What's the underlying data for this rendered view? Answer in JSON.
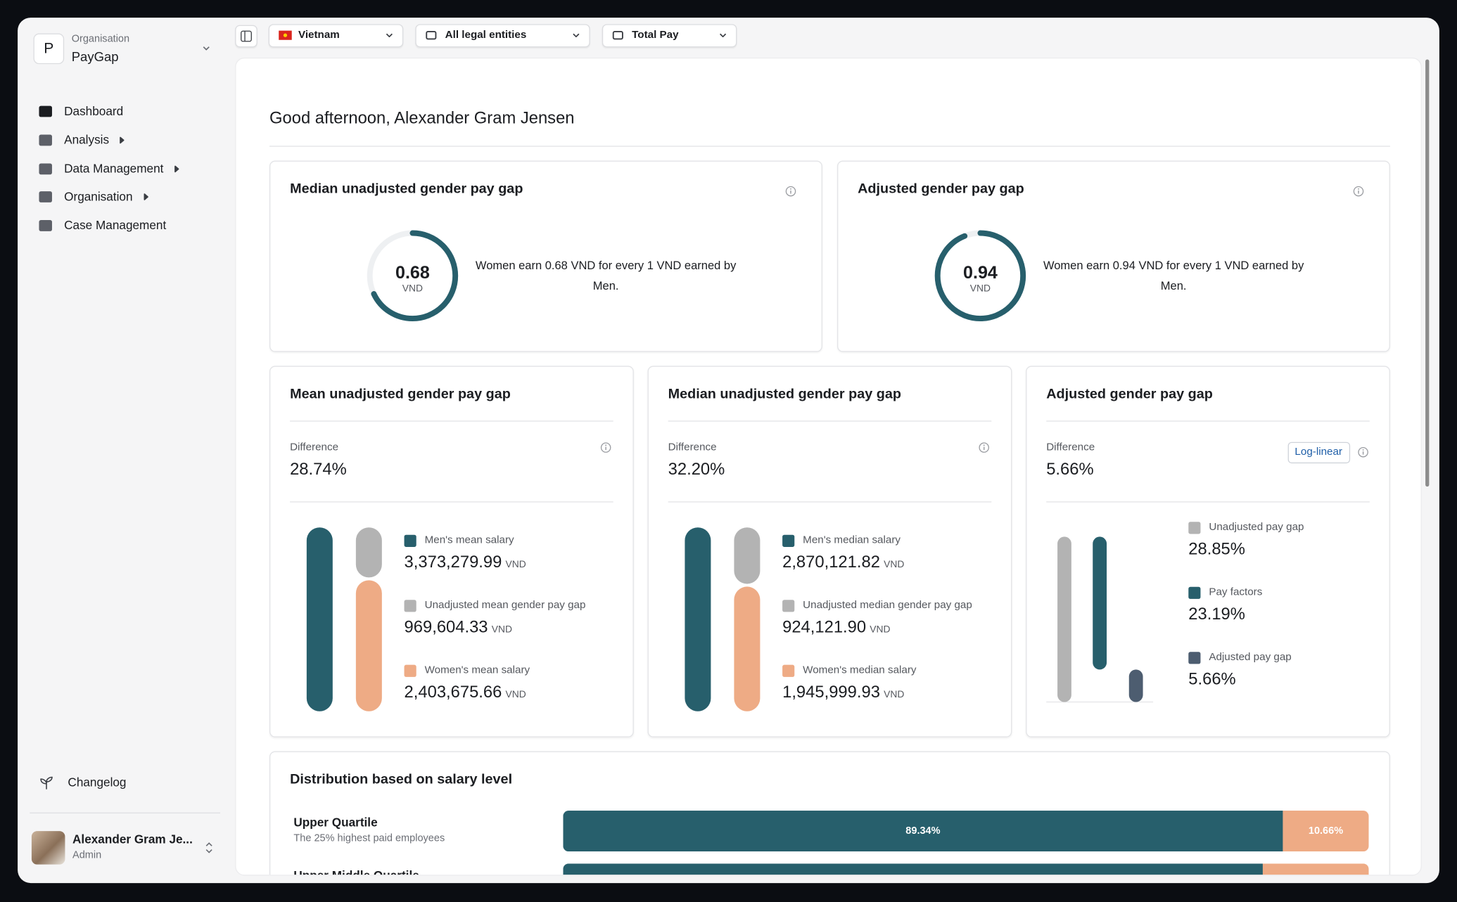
{
  "sidebar": {
    "org_initial": "P",
    "org_label": "Organisation",
    "org_name": "PayGap",
    "nav": [
      "Dashboard",
      "Analysis",
      "Data Management",
      "Organisation",
      "Case Management"
    ],
    "changelog": "Changelog",
    "user": {
      "name": "Alexander Gram Je...",
      "role": "Admin"
    }
  },
  "filters": [
    "Vietnam",
    "All legal entities",
    "Total Pay"
  ],
  "greeting": "Good afternoon, Alexander Gram Jensen",
  "gauges": [
    {
      "title": "Median unadjusted gender pay gap",
      "value": 0.68,
      "unit": "VND",
      "text": "Women earn 0.68 VND for every 1 VND earned by Men."
    },
    {
      "title": "Adjusted gender pay gap",
      "value": 0.94,
      "unit": "VND",
      "text": "Women earn 0.94 VND for every 1 VND earned by Men."
    }
  ],
  "cards": [
    {
      "title": "Mean unadjusted gender pay gap",
      "diff_label": "Difference",
      "diff": "28.74%",
      "items": [
        {
          "label": "Men's mean salary",
          "value": 3373279.99,
          "value_label": "3,373,279.99",
          "unit": "VND",
          "color": "#275f6c"
        },
        {
          "label": "Unadjusted mean gender pay gap",
          "value": 969604.33,
          "value_label": "969,604.33",
          "unit": "VND",
          "color": "#b3b3b3"
        },
        {
          "label": "Women's mean salary",
          "value": 2403675.66,
          "value_label": "2,403,675.66",
          "unit": "VND",
          "color": "#eeab85"
        }
      ]
    },
    {
      "title": "Median unadjusted gender pay gap",
      "diff_label": "Difference",
      "diff": "32.20%",
      "items": [
        {
          "label": "Men's median salary",
          "value": 2870121.82,
          "value_label": "2,870,121.82",
          "unit": "VND",
          "color": "#275f6c"
        },
        {
          "label": "Unadjusted median gender pay gap",
          "value": 924121.9,
          "value_label": "924,121.90",
          "unit": "VND",
          "color": "#b3b3b3"
        },
        {
          "label": "Women's median salary",
          "value": 1945999.93,
          "value_label": "1,945,999.93",
          "unit": "VND",
          "color": "#eeab85"
        }
      ]
    },
    {
      "title": "Adjusted gender pay gap",
      "diff_label": "Difference",
      "diff": "5.66%",
      "badge": "Log-linear",
      "items": [
        {
          "label": "Unadjusted pay gap",
          "value": 28.85,
          "value_label": "28.85%",
          "color": "#b3b3b3"
        },
        {
          "label": "Pay factors",
          "value": 23.19,
          "value_label": "23.19%",
          "color": "#275f6c"
        },
        {
          "label": "Adjusted pay gap",
          "value": 5.66,
          "value_label": "5.66%",
          "color": "#4d5d70"
        }
      ]
    }
  ],
  "distribution": {
    "title": "Distribution based on salary level",
    "colors": [
      "#275f6c",
      "#eeab85"
    ],
    "rows": [
      {
        "label": "Upper Quartile",
        "sub": "The 25% highest paid employees",
        "values": [
          89.34,
          10.66
        ],
        "value_labels": [
          "89.34%",
          "10.66%"
        ]
      },
      {
        "label": "Upper Middle Quartile",
        "values": [
          86.85,
          13.15
        ]
      }
    ]
  }
}
